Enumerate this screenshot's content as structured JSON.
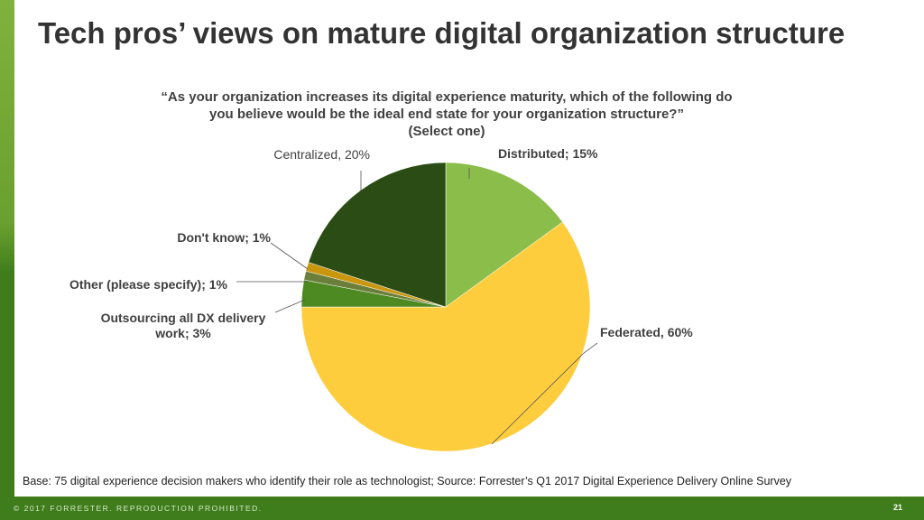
{
  "title": "Tech pros’ views on mature digital organization structure",
  "question": {
    "line1": "“As your organization increases its digital experience maturity, which of the following do",
    "line2": "you believe would be the ideal end state for your organization structure?”",
    "line3": "(Select one)"
  },
  "base_note": "Base: 75 digital experience decision makers who identify their role as technologist; Source: Forrester’s Q1 2017 Digital Experience Delivery Online Survey",
  "footer": {
    "copyright": "© 2017 FORRESTER. REPRODUCTION PROHIBITED.",
    "page_number": "21"
  },
  "chart_data": {
    "type": "pie",
    "title": "“As your organization increases its digital experience maturity, which of the following do you believe would be the ideal end state for your organization structure?” (Select one)",
    "unit": "%",
    "slices": [
      {
        "name": "Distributed",
        "value": 15,
        "label": "Distributed; 15%",
        "color": "#8bbd4a"
      },
      {
        "name": "Federated",
        "value": 60,
        "label": "Federated, 60%",
        "color": "#fdcd3e"
      },
      {
        "name": "Outsourcing all DX delivery work",
        "value": 3,
        "label": "Outsourcing all DX delivery work; 3%",
        "color": "#4d8a22"
      },
      {
        "name": "Other (please specify)",
        "value": 1,
        "label": "Other (please specify); 1%",
        "color": "#6b7f3a"
      },
      {
        "name": "Don't know",
        "value": 1,
        "label": "Don't know; 1%",
        "color": "#c9960e"
      },
      {
        "name": "Centralized",
        "value": 20,
        "label": "Centralized, 20%",
        "color": "#2b4c14"
      }
    ]
  }
}
